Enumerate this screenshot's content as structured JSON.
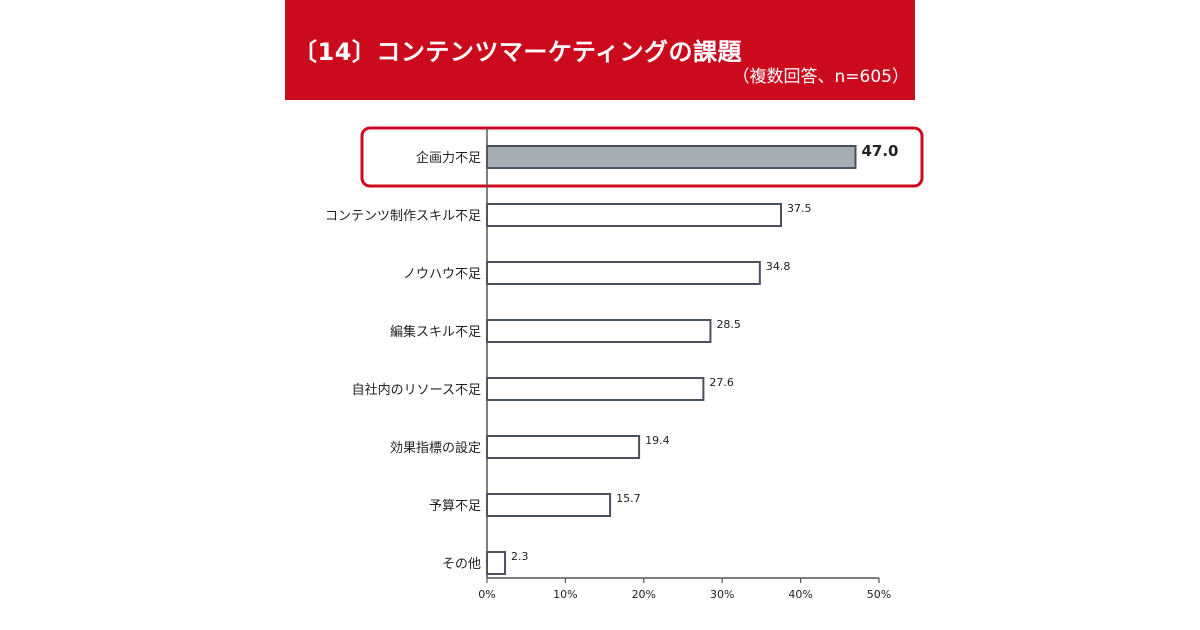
{
  "header": {
    "title": "〔14〕コンテンツマーケティングの課題",
    "subtitle": "（複数回答、n=605）"
  },
  "colors": {
    "header_bg": "#cc0a1e",
    "highlight": "#cc0a1e",
    "bar_highlight_fill": "#a6adb5",
    "bar_fill": "#ffffff",
    "bar_stroke": "#4a5060"
  },
  "chart_data": {
    "type": "bar",
    "orientation": "horizontal",
    "categories": [
      "企画力不足",
      "コンテンツ制作スキル不足",
      "ノウハウ不足",
      "編集スキル不足",
      "自社内のリソース不足",
      "効果指標の設定",
      "予算不足",
      "その他"
    ],
    "values": [
      47.0,
      37.5,
      34.8,
      28.5,
      27.6,
      19.4,
      15.7,
      2.3
    ],
    "value_labels": [
      "47.0",
      "37.5",
      "34.8",
      "28.5",
      "27.6",
      "19.4",
      "15.7",
      "2.3"
    ],
    "highlighted_index": 0,
    "xlim": [
      0,
      50
    ],
    "xticks": [
      0,
      10,
      20,
      30,
      40,
      50
    ],
    "xtick_labels": [
      "0%",
      "10%",
      "20%",
      "30%",
      "40%",
      "50%"
    ],
    "grid": false,
    "legend": "none"
  }
}
